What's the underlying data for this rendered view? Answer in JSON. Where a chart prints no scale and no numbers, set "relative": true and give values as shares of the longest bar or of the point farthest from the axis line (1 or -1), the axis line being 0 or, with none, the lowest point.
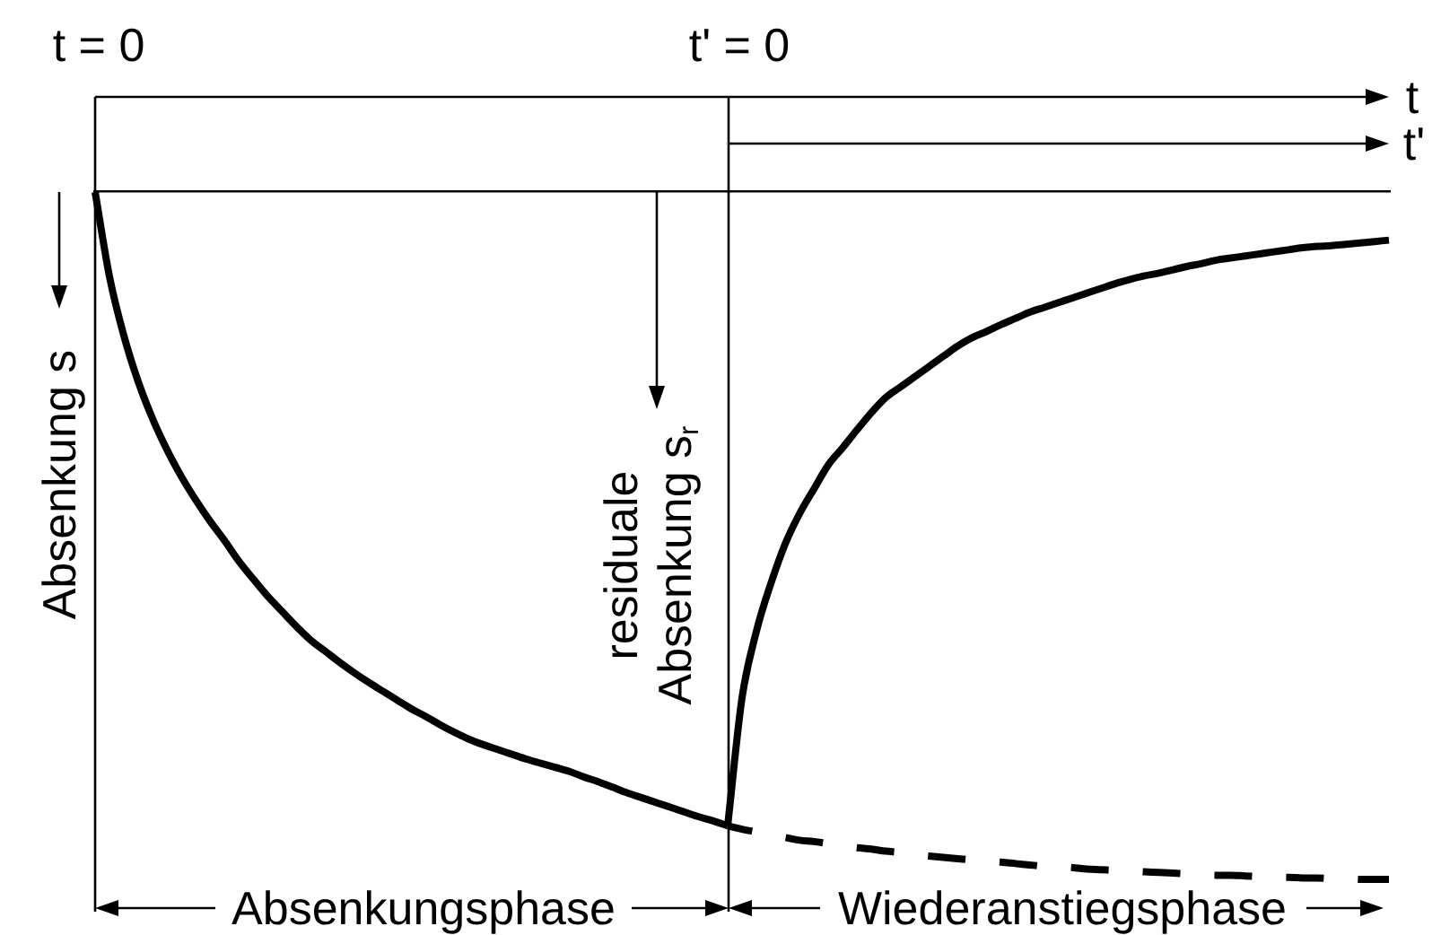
{
  "chart_data": {
    "type": "line",
    "relative": true,
    "xlabel": "t",
    "x2label": "t'",
    "ylabel": "Absenkung s",
    "annotations": [
      "t = 0",
      "t' = 0",
      "residuale Absenkung s$_{r}$",
      "Absenkungsphase",
      "Wiederanstiegsphase"
    ],
    "categories": [
      null,
      null,
      null,
      null,
      null,
      null,
      null,
      null,
      null,
      null,
      null,
      null,
      null,
      null,
      null,
      null,
      null,
      null,
      null,
      null,
      null,
      null,
      null,
      null,
      null,
      null,
      null,
      null,
      null,
      null,
      null,
      null,
      null,
      null,
      null,
      null,
      null,
      null,
      null,
      null,
      null,
      null,
      null,
      null,
      null,
      null,
      null,
      null,
      null,
      null,
      null,
      null,
      null,
      null,
      null,
      null,
      null,
      null,
      null,
      null,
      null,
      null,
      null,
      null,
      null,
      null,
      null,
      null,
      null,
      null,
      null,
      null,
      null,
      null,
      null,
      null,
      null,
      null,
      null,
      null,
      null,
      null,
      null,
      null,
      null,
      null,
      null,
      null,
      null,
      null,
      null
    ],
    "series": [
      {
        "color": "#000000",
        "line_style": "solid",
        "values": [
          0,
          -0.123,
          -0.209,
          -0.276,
          -0.33,
          -0.375,
          -0.414,
          -0.448,
          -0.479,
          -0.507,
          -0.537,
          -0.563,
          -0.588,
          -0.61,
          -0.632,
          -0.652,
          -0.668,
          -0.684,
          -0.699,
          -0.713,
          -0.726,
          -0.739,
          -0.752,
          -0.763,
          -0.775,
          -0.786,
          -0.796,
          -0.804,
          -0.811,
          -0.818,
          -0.825,
          -0.831,
          -0.837,
          -0.843,
          -0.851,
          -0.858,
          -0.866,
          -0.874,
          -0.881,
          -0.888,
          -0.895,
          -0.902,
          -0.909,
          -0.915,
          -0.922,
          null,
          null,
          null,
          null,
          null,
          null,
          null,
          null,
          null,
          null,
          null,
          null,
          null,
          null,
          null,
          null,
          null,
          null,
          null,
          null,
          null,
          null,
          null,
          null,
          null,
          null,
          null,
          null,
          null,
          null,
          null,
          null,
          null,
          null,
          null,
          null,
          null,
          null,
          null,
          null,
          null,
          null,
          null,
          null,
          null,
          null
        ]
      },
      {
        "color": "#000000",
        "line_style": "solid",
        "values": [
          null,
          null,
          null,
          null,
          null,
          null,
          null,
          null,
          null,
          null,
          null,
          null,
          null,
          null,
          null,
          null,
          null,
          null,
          null,
          null,
          null,
          null,
          null,
          null,
          null,
          null,
          null,
          null,
          null,
          null,
          null,
          null,
          null,
          null,
          null,
          null,
          null,
          null,
          null,
          null,
          null,
          null,
          null,
          null,
          -0.922,
          -0.736,
          -0.639,
          -0.57,
          -0.512,
          -0.468,
          -0.432,
          -0.397,
          -0.372,
          -0.346,
          -0.321,
          -0.299,
          -0.284,
          -0.269,
          -0.254,
          -0.239,
          -0.224,
          -0.212,
          -0.203,
          -0.193,
          -0.184,
          -0.175,
          -0.168,
          -0.161,
          -0.154,
          -0.147,
          -0.14,
          -0.133,
          -0.127,
          -0.122,
          -0.118,
          -0.113,
          -0.108,
          -0.104,
          -0.099,
          -0.096,
          -0.093,
          -0.09,
          -0.087,
          -0.084,
          -0.081,
          -0.079,
          -0.078,
          -0.076,
          -0.074,
          -0.072,
          -0.07
        ]
      },
      {
        "color": "#000000",
        "line_style": "dashed",
        "values": [
          null,
          null,
          null,
          null,
          null,
          null,
          null,
          null,
          null,
          null,
          null,
          null,
          null,
          null,
          null,
          null,
          null,
          null,
          null,
          null,
          null,
          null,
          null,
          null,
          null,
          null,
          null,
          null,
          null,
          null,
          null,
          null,
          null,
          null,
          null,
          null,
          null,
          null,
          null,
          null,
          null,
          null,
          null,
          null,
          -0.922,
          -0.927,
          -0.931,
          -0.935,
          -0.939,
          -0.943,
          -0.945,
          -0.948,
          -0.951,
          -0.954,
          -0.956,
          -0.959,
          -0.961,
          -0.964,
          -0.966,
          -0.968,
          -0.97,
          -0.972,
          -0.974,
          -0.975,
          -0.977,
          -0.979,
          -0.981,
          -0.982,
          -0.983,
          -0.985,
          -0.986,
          -0.987,
          -0.988,
          -0.989,
          -0.99,
          -0.991,
          -0.992,
          -0.993,
          -0.994,
          -0.994,
          -0.995,
          -0.996,
          -0.997,
          -0.997,
          -0.998,
          -0.998,
          -0.999,
          -0.999,
          -1,
          -1,
          -1
        ]
      }
    ]
  }
}
